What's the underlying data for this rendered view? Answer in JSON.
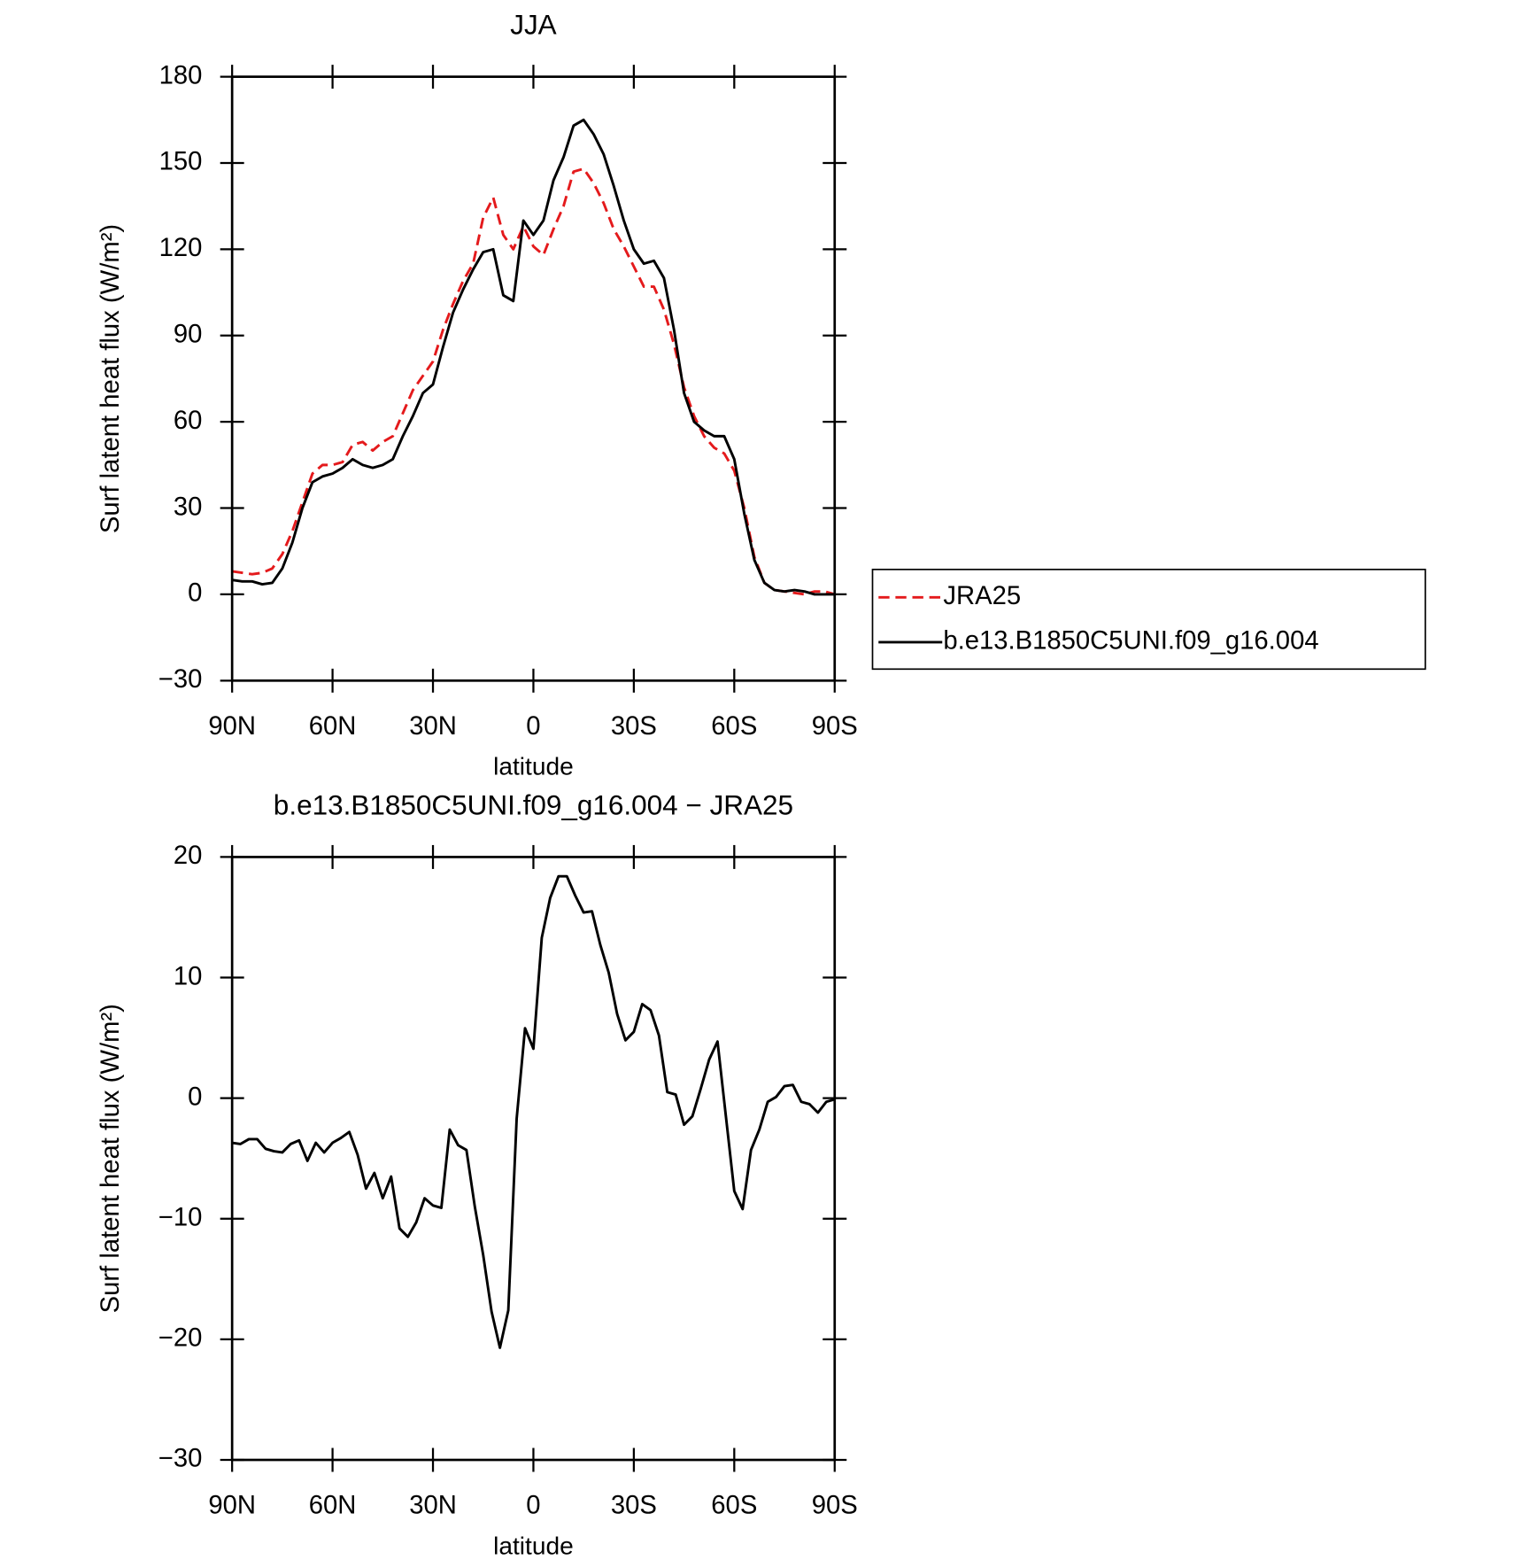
{
  "chart_data": [
    {
      "type": "line",
      "title": "JJA",
      "xlabel": "latitude",
      "ylabel": "Surf latent heat flux (W/m²)",
      "x": [
        90,
        87,
        84,
        81,
        78,
        75,
        72,
        69,
        66,
        63,
        60,
        57,
        54,
        51,
        48,
        45,
        42,
        39,
        36,
        33,
        30,
        27,
        24,
        21,
        18,
        15,
        12,
        9,
        6,
        3,
        0,
        -3,
        -6,
        -9,
        -12,
        -15,
        -18,
        -21,
        -24,
        -27,
        -30,
        -33,
        -36,
        -39,
        -42,
        -45,
        -48,
        -51,
        -54,
        -57,
        -60,
        -63,
        -66,
        -69,
        -72,
        -75,
        -78,
        -81,
        -84,
        -87,
        -90
      ],
      "series": [
        {
          "name": "JRA25",
          "color": "#e41a1c",
          "linestyle": "dashed",
          "values": [
            8,
            7.5,
            7,
            7.5,
            9,
            14,
            22,
            32,
            42,
            45,
            45,
            46,
            52,
            53,
            50,
            53,
            55,
            63,
            71,
            76,
            81,
            92,
            101,
            109,
            115,
            131,
            138,
            125,
            120,
            128,
            121,
            118,
            127,
            135,
            147,
            148,
            143,
            136,
            127,
            121,
            114,
            107,
            107,
            99,
            87,
            72,
            62,
            55,
            51,
            49,
            43,
            30,
            13,
            4,
            1.5,
            1,
            0.5,
            0,
            1,
            1,
            0
          ]
        },
        {
          "name": "b.e13.B1850C5UNI.f09_g16.004",
          "color": "#000000",
          "linestyle": "solid",
          "values": [
            5,
            4.5,
            4.5,
            3.5,
            4,
            9,
            18,
            30,
            39,
            41,
            42,
            44,
            47,
            45,
            44,
            45,
            47,
            55,
            62,
            70,
            73,
            86,
            98,
            106,
            113,
            119,
            120,
            104,
            102,
            130,
            125,
            130,
            144,
            152,
            163,
            165,
            160,
            153,
            142,
            130,
            120,
            115,
            116,
            110,
            92,
            70,
            60,
            57,
            55,
            55,
            47,
            28,
            12,
            4,
            1.5,
            1,
            1.5,
            1,
            0,
            0,
            0
          ]
        }
      ],
      "xlim": [
        90,
        -90
      ],
      "xticks": [
        {
          "value": 90,
          "label": "90N"
        },
        {
          "value": 60,
          "label": "60N"
        },
        {
          "value": 30,
          "label": "30N"
        },
        0,
        {
          "value": -30,
          "label": "30S"
        },
        {
          "value": -60,
          "label": "60S"
        },
        {
          "value": -90,
          "label": "90S"
        }
      ],
      "ylim": [
        -30,
        180
      ],
      "yticks": [
        {
          "value": -30,
          "label": "−30"
        },
        0,
        30,
        60,
        90,
        120,
        150,
        180
      ],
      "legend": "right"
    },
    {
      "type": "line",
      "title": "b.e13.B1850C5UNI.f09_g16.004 − JRA25",
      "xlabel": "latitude",
      "ylabel": "Surf latent heat flux (W/m²)",
      "x": [
        90,
        87.5,
        85,
        82.5,
        80,
        77.5,
        75,
        72.5,
        70,
        67.5,
        65,
        62.5,
        60,
        57.5,
        55,
        52.5,
        50,
        47.5,
        45,
        42.5,
        40,
        37.5,
        35,
        32.5,
        30,
        27.5,
        25,
        22.5,
        20,
        17.5,
        15,
        12.5,
        10,
        7.5,
        5,
        2.5,
        0,
        -2.5,
        -5,
        -7.5,
        -10,
        -12.5,
        -15,
        -17.5,
        -20,
        -22.5,
        -25,
        -27.5,
        -30,
        -32.5,
        -35,
        -37.5,
        -40,
        -42.5,
        -45,
        -47.5,
        -50,
        -52.5,
        -55,
        -57.5,
        -60,
        -62.5,
        -65,
        -67.5,
        -70,
        -72.5,
        -75,
        -77.5,
        -80,
        -82.5,
        -85,
        -87.5,
        -90
      ],
      "values": [
        -3.7,
        -3.8,
        -3.4,
        -3.4,
        -4.2,
        -4.4,
        -4.5,
        -3.8,
        -3.5,
        -5.2,
        -3.7,
        -4.5,
        -3.7,
        -3.3,
        -2.8,
        -4.7,
        -7.5,
        -6.2,
        -8.3,
        -6.5,
        -10.8,
        -11.5,
        -10.3,
        -8.3,
        -8.9,
        -9.1,
        -2.6,
        -3.9,
        -4.3,
        -9,
        -13,
        -17.7,
        -20.7,
        -17.6,
        -1.7,
        5.8,
        4.1,
        13.3,
        16.6,
        18.4,
        18.4,
        16.8,
        15.4,
        15.5,
        12.7,
        10.4,
        7,
        4.8,
        5.5,
        7.8,
        7.3,
        5.2,
        0.5,
        0.3,
        -2.2,
        -1.5,
        0.8,
        3.2,
        4.7,
        -1.5,
        -7.7,
        -9.2,
        -4.3,
        -2.6,
        -0.3,
        0.1,
        1,
        1.1,
        -0.3,
        -0.5,
        -1.2,
        -0.3,
        -0.1
      ],
      "color": "#000000",
      "linestyle": "solid",
      "xlim": [
        90,
        -90
      ],
      "xticks": [
        {
          "value": 90,
          "label": "90N"
        },
        {
          "value": 60,
          "label": "60N"
        },
        {
          "value": 30,
          "label": "30N"
        },
        0,
        {
          "value": -30,
          "label": "30S"
        },
        {
          "value": -60,
          "label": "60S"
        },
        {
          "value": -90,
          "label": "90S"
        }
      ],
      "ylim": [
        -30,
        20
      ],
      "yticks": [
        {
          "value": -30,
          "label": "−30"
        },
        {
          "value": -20,
          "label": "−20"
        },
        {
          "value": -10,
          "label": "−10"
        },
        0,
        10,
        20
      ]
    }
  ]
}
